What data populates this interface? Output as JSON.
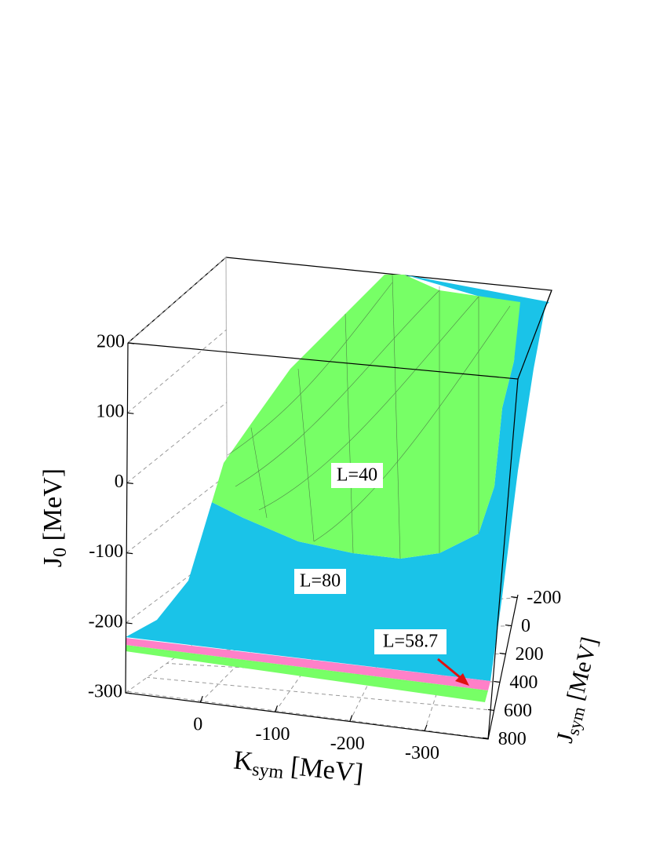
{
  "chart_data": {
    "type": "surface3d",
    "zlabel": {
      "main": "J",
      "sub": "0",
      "unit": " [MeV]"
    },
    "xlabel": {
      "main": "K",
      "sub": "sym",
      "unit": " [MeV]"
    },
    "ylabel": {
      "main": "J",
      "sub": "sym",
      "unit": " [MeV]"
    },
    "zlim": [
      -300,
      200
    ],
    "zticks": [
      200,
      100,
      0,
      -100,
      -200,
      -300
    ],
    "xlim": [
      100,
      -385
    ],
    "xticks": [
      0,
      -100,
      -200,
      -300
    ],
    "ylim": [
      -220,
      820
    ],
    "yticks": [
      -200,
      0,
      200,
      400,
      600,
      800
    ],
    "grid": true,
    "surfaces": [
      {
        "name": "L=40",
        "color": "#77ff66"
      },
      {
        "name": "L=80",
        "color": "#1ac3e8"
      },
      {
        "name": "L=58.7",
        "color": "#ff80c8"
      }
    ],
    "arrow_color": "#e01010"
  }
}
